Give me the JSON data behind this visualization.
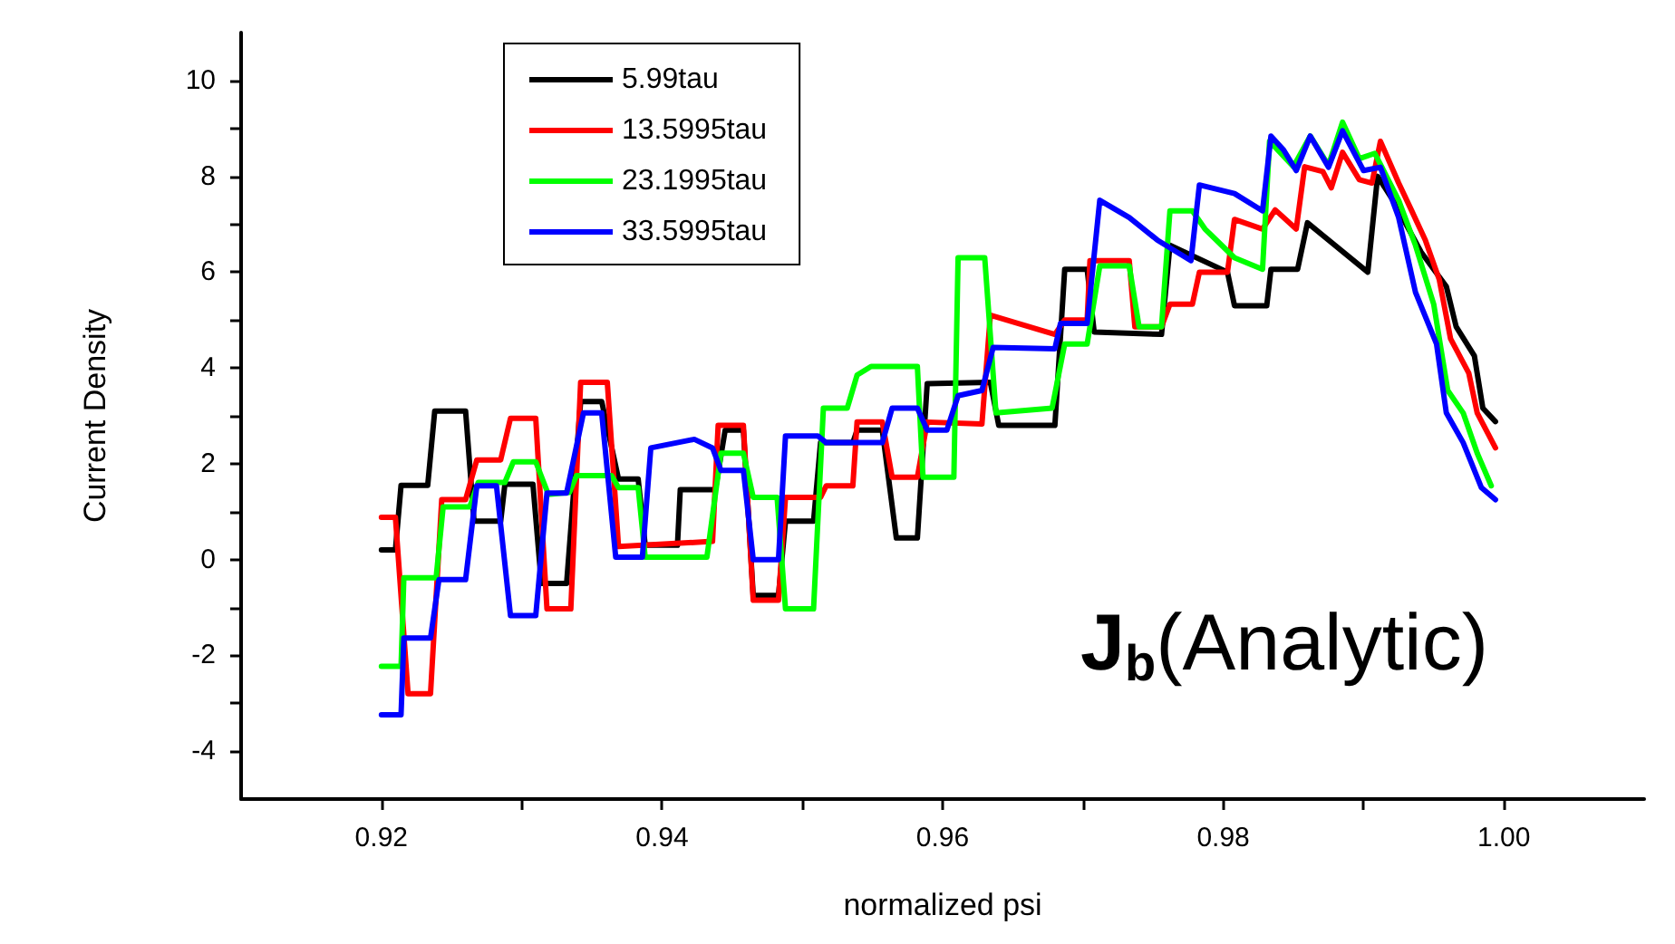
{
  "chart_data": {
    "type": "line",
    "xlabel": "normalized psi",
    "ylabel": "Current Density",
    "annotations": [
      "J$_{b}$(Analytic)"
    ],
    "xlim": [
      0.91,
      1.01
    ],
    "ylim": [
      -5,
      11
    ],
    "xticks": [
      0.92,
      {
        "value": 0.93,
        "label": null
      },
      0.94,
      {
        "value": 0.95,
        "label": null
      },
      0.96,
      {
        "value": 0.97,
        "label": null
      },
      0.98,
      {
        "value": 0.99,
        "label": null
      },
      {
        "value": 1,
        "label": "1.00"
      }
    ],
    "yticks": [
      -4,
      {
        "value": -3,
        "label": null
      },
      -2,
      {
        "value": -1,
        "label": null
      },
      0,
      {
        "value": 1,
        "label": null
      },
      2,
      {
        "value": 3,
        "label": null
      },
      4,
      {
        "value": 5,
        "label": null
      },
      6,
      {
        "value": 7,
        "label": null
      },
      8,
      {
        "value": 9,
        "label": null
      },
      10
    ],
    "grid": false,
    "legend": "top left",
    "marker": "none",
    "line_style": "solid",
    "series": [
      {
        "name": "5.99tau",
        "color": "#000000",
        "x": [
          0.92,
          0.921,
          0.9214,
          0.9233,
          0.9238,
          0.926,
          0.9266,
          0.9285,
          0.9288,
          0.9308,
          0.9314,
          0.9332,
          0.9342,
          0.9357,
          0.9369,
          0.9383,
          0.9388,
          0.9411,
          0.9413,
          0.9438,
          0.9445,
          0.9458,
          0.9465,
          0.9483,
          0.9488,
          0.9508,
          0.9513,
          0.9536,
          0.9539,
          0.9557,
          0.9567,
          0.9582,
          0.9589,
          0.9634,
          0.964,
          0.968,
          0.9687,
          0.9703,
          0.9708,
          0.9756,
          0.9762,
          0.9803,
          0.9808,
          0.9831,
          0.9834,
          0.9853,
          0.986,
          0.9903,
          0.991,
          0.9921,
          0.9941,
          0.9959,
          0.9966,
          0.9979,
          0.9985,
          0.9994
        ],
        "values": [
          0.2,
          0.2,
          1.55,
          1.55,
          3.1,
          3.1,
          0.8,
          0.8,
          1.57,
          1.57,
          -0.5,
          -0.5,
          3.3,
          3.3,
          1.68,
          1.68,
          0.3,
          0.3,
          1.46,
          1.46,
          2.7,
          2.7,
          -0.75,
          -0.75,
          0.8,
          0.8,
          2.44,
          2.44,
          2.7,
          2.7,
          0.45,
          0.45,
          3.67,
          3.7,
          2.8,
          2.8,
          6.06,
          6.06,
          4.75,
          4.7,
          6.56,
          6.0,
          5.3,
          5.3,
          6.06,
          6.06,
          7.03,
          6.0,
          8.0,
          7.5,
          6.42,
          5.7,
          4.86,
          4.25,
          3.16,
          2.88
        ]
      },
      {
        "name": "13.5995tau",
        "color": "#ff0000",
        "x": [
          0.92,
          0.921,
          0.9219,
          0.9235,
          0.9243,
          0.926,
          0.9268,
          0.9285,
          0.9292,
          0.931,
          0.9318,
          0.9335,
          0.9342,
          0.9361,
          0.9369,
          0.9436,
          0.944,
          0.9458,
          0.9465,
          0.9483,
          0.9488,
          0.9513,
          0.9517,
          0.9536,
          0.9539,
          0.9557,
          0.9564,
          0.9582,
          0.9589,
          0.9628,
          0.9634,
          0.968,
          0.9687,
          0.9703,
          0.9705,
          0.9733,
          0.9737,
          0.9756,
          0.9762,
          0.9778,
          0.9783,
          0.9803,
          0.9808,
          0.9828,
          0.9837,
          0.9852,
          0.9858,
          0.9871,
          0.9877,
          0.9885,
          0.9897,
          0.9906,
          0.9912,
          0.9925,
          0.9934,
          0.9944,
          0.9954,
          0.9962,
          0.9975,
          0.9981,
          0.9994
        ],
        "values": [
          0.88,
          0.88,
          -2.8,
          -2.8,
          1.25,
          1.25,
          2.08,
          2.08,
          2.95,
          2.95,
          -1.03,
          -1.03,
          3.7,
          3.7,
          0.27,
          0.38,
          2.8,
          2.8,
          -0.85,
          -0.85,
          1.3,
          1.3,
          1.54,
          1.54,
          2.87,
          2.87,
          1.72,
          1.72,
          2.87,
          2.83,
          5.1,
          4.7,
          5.0,
          5.0,
          6.24,
          6.24,
          4.86,
          4.86,
          5.33,
          5.33,
          6.0,
          6.0,
          7.1,
          6.9,
          7.3,
          6.9,
          8.2,
          8.1,
          7.76,
          8.5,
          7.93,
          7.86,
          8.73,
          7.86,
          7.3,
          6.67,
          5.84,
          4.61,
          3.89,
          3.06,
          2.33
        ]
      },
      {
        "name": "23.1995tau",
        "color": "#00ff00",
        "x": [
          0.92,
          0.9214,
          0.9216,
          0.9239,
          0.9244,
          0.9263,
          0.9269,
          0.9288,
          0.9294,
          0.931,
          0.9319,
          0.9334,
          0.9339,
          0.9364,
          0.9369,
          0.9383,
          0.9388,
          0.9432,
          0.9442,
          0.9458,
          0.9465,
          0.9482,
          0.9488,
          0.9508,
          0.9515,
          0.9532,
          0.9539,
          0.9549,
          0.9582,
          0.9586,
          0.959,
          0.9608,
          0.9611,
          0.963,
          0.9638,
          0.9678,
          0.9687,
          0.9703,
          0.9712,
          0.9733,
          0.974,
          0.9756,
          0.9762,
          0.9778,
          0.9787,
          0.9808,
          0.9828,
          0.9833,
          0.985,
          0.9862,
          0.9875,
          0.9885,
          0.9897,
          0.9908,
          0.9925,
          0.9937,
          0.995,
          0.996,
          0.9971,
          0.9981,
          0.9991
        ],
        "values": [
          -2.23,
          -2.23,
          -0.38,
          -0.38,
          1.1,
          1.1,
          1.61,
          1.61,
          2.04,
          2.04,
          1.36,
          1.4,
          1.75,
          1.75,
          1.5,
          1.5,
          0.05,
          0.05,
          2.22,
          2.22,
          1.3,
          1.3,
          -1.03,
          -1.03,
          3.16,
          3.16,
          3.85,
          4.03,
          4.03,
          1.72,
          1.72,
          1.72,
          6.3,
          6.3,
          3.06,
          3.16,
          4.5,
          4.5,
          6.13,
          6.13,
          4.86,
          4.86,
          7.28,
          7.28,
          6.9,
          6.3,
          6.06,
          8.73,
          8.2,
          8.84,
          8.23,
          9.13,
          8.37,
          8.48,
          7.5,
          6.56,
          5.33,
          3.53,
          3.06,
          2.22,
          1.54
        ]
      },
      {
        "name": "33.5995tau",
        "color": "#0000ff",
        "x": [
          0.92,
          0.9214,
          0.9216,
          0.9235,
          0.9241,
          0.926,
          0.9268,
          0.9282,
          0.9292,
          0.931,
          0.9318,
          0.9332,
          0.9344,
          0.9357,
          0.9367,
          0.9386,
          0.9392,
          0.9423,
          0.9436,
          0.9442,
          0.9458,
          0.9465,
          0.9483,
          0.9488,
          0.9511,
          0.9517,
          0.9557,
          0.9564,
          0.9582,
          0.9589,
          0.9603,
          0.9611,
          0.9628,
          0.9636,
          0.968,
          0.9684,
          0.9703,
          0.9712,
          0.9733,
          0.9753,
          0.9777,
          0.9783,
          0.9808,
          0.9828,
          0.9834,
          0.9843,
          0.9852,
          0.9862,
          0.9875,
          0.9885,
          0.99,
          0.9912,
          0.9925,
          0.9937,
          0.9952,
          0.9959,
          0.9971,
          0.9984,
          0.9994
        ],
        "values": [
          -3.24,
          -3.24,
          -1.64,
          -1.64,
          -0.42,
          -0.42,
          1.54,
          1.54,
          -1.17,
          -1.17,
          1.39,
          1.39,
          3.06,
          3.06,
          0.05,
          0.05,
          2.33,
          2.51,
          2.33,
          1.86,
          1.86,
          0.0,
          0.0,
          2.58,
          2.58,
          2.44,
          2.44,
          3.16,
          3.16,
          2.7,
          2.7,
          3.42,
          3.53,
          4.43,
          4.4,
          4.93,
          4.93,
          7.5,
          7.14,
          6.67,
          6.24,
          7.82,
          7.64,
          7.28,
          8.84,
          8.55,
          8.12,
          8.84,
          8.19,
          8.95,
          8.12,
          8.19,
          7.14,
          5.58,
          4.5,
          3.06,
          2.44,
          1.5,
          1.25
        ]
      }
    ]
  }
}
